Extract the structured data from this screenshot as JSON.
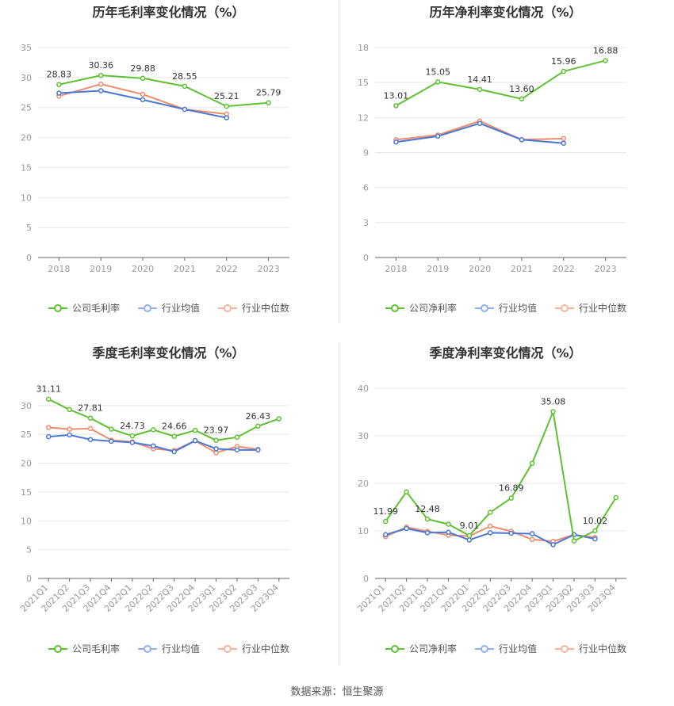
{
  "legend_labels": {
    "gross": "公司毛利率",
    "net": "公司净利率",
    "avg": "行业均值",
    "median": "行业中位数"
  },
  "colors": {
    "company": "#5ec230",
    "avg": "#4a78d6",
    "median": "#f08c6c",
    "grid": "#e8e8e8",
    "axis": "#999999"
  },
  "source": "数据来源：恒生聚源",
  "chart_data": [
    {
      "type": "line",
      "title": "历年毛利率变化情况（%）",
      "categories": [
        "2018",
        "2019",
        "2020",
        "2021",
        "2022",
        "2023"
      ],
      "yticks": [
        0,
        5,
        10,
        15,
        20,
        25,
        30,
        35
      ],
      "ylim": [
        0,
        35
      ],
      "rotate_x": false,
      "series": [
        {
          "name": "公司毛利率",
          "key": "company",
          "values": [
            28.83,
            30.36,
            29.88,
            28.55,
            25.21,
            25.79
          ],
          "labels": [
            "28.83",
            "30.36",
            "29.88",
            "28.55",
            "25.21",
            "25.79"
          ]
        },
        {
          "name": "行业均值",
          "key": "avg",
          "values": [
            27.4,
            27.8,
            26.3,
            24.7,
            23.3,
            null
          ]
        },
        {
          "name": "行业中位数",
          "key": "median",
          "values": [
            26.9,
            28.9,
            27.2,
            24.7,
            23.9,
            null
          ]
        }
      ]
    },
    {
      "type": "line",
      "title": "历年净利率变化情况（%）",
      "categories": [
        "2018",
        "2019",
        "2020",
        "2021",
        "2022",
        "2023"
      ],
      "yticks": [
        0,
        3,
        6,
        9,
        12,
        15,
        18
      ],
      "ylim": [
        0,
        18
      ],
      "rotate_x": false,
      "series": [
        {
          "name": "公司净利率",
          "key": "company",
          "values": [
            13.01,
            15.05,
            14.41,
            13.6,
            15.96,
            16.88
          ],
          "labels": [
            "13.01",
            "15.05",
            "14.41",
            "13.60",
            "15.96",
            "16.88"
          ]
        },
        {
          "name": "行业均值",
          "key": "avg",
          "values": [
            9.9,
            10.4,
            11.5,
            10.1,
            9.8,
            null
          ]
        },
        {
          "name": "行业中位数",
          "key": "median",
          "values": [
            10.1,
            10.5,
            11.7,
            10.1,
            10.2,
            null
          ]
        }
      ]
    },
    {
      "type": "line",
      "title": "季度毛利率变化情况（%）",
      "categories": [
        "2021Q1",
        "2021Q2",
        "2021Q3",
        "2021Q4",
        "2022Q1",
        "2022Q2",
        "2022Q3",
        "2022Q4",
        "2023Q1",
        "2023Q2",
        "2023Q3",
        "2023Q4"
      ],
      "yticks": [
        0,
        5,
        10,
        15,
        20,
        25,
        30
      ],
      "ylim": [
        0,
        33
      ],
      "rotate_x": true,
      "series": [
        {
          "name": "公司毛利率",
          "key": "company",
          "values": [
            31.11,
            29.3,
            27.81,
            25.9,
            24.73,
            25.8,
            24.66,
            25.7,
            23.97,
            24.5,
            26.43,
            27.7
          ],
          "labels": [
            "31.11",
            "",
            "27.81",
            "",
            "24.73",
            "",
            "24.66",
            "",
            "23.97",
            "",
            "26.43",
            ""
          ]
        },
        {
          "name": "行业均值",
          "key": "avg",
          "values": [
            24.6,
            24.9,
            24.1,
            23.8,
            23.6,
            23.0,
            22.0,
            23.9,
            22.5,
            22.3,
            22.3,
            null
          ]
        },
        {
          "name": "行业中位数",
          "key": "median",
          "values": [
            26.2,
            25.9,
            26.0,
            24.0,
            23.7,
            22.5,
            22.2,
            23.9,
            21.8,
            22.9,
            22.4,
            null
          ]
        }
      ]
    },
    {
      "type": "line",
      "title": "季度净利率变化情况（%）",
      "categories": [
        "2021Q1",
        "2021Q2",
        "2021Q3",
        "2021Q4",
        "2022Q1",
        "2022Q2",
        "2022Q3",
        "2022Q4",
        "2023Q1",
        "2023Q2",
        "2023Q3",
        "2023Q4"
      ],
      "yticks": [
        0,
        10,
        20,
        30,
        40
      ],
      "ylim": [
        0,
        40
      ],
      "rotate_x": true,
      "series": [
        {
          "name": "公司净利率",
          "key": "company",
          "values": [
            11.99,
            18.2,
            12.48,
            11.4,
            9.01,
            13.9,
            16.89,
            24.2,
            35.08,
            7.9,
            10.02,
            17.0
          ],
          "labels": [
            "11.99",
            "",
            "12.48",
            "",
            "9.01",
            "",
            "16.89",
            "",
            "35.08",
            "",
            "10.02",
            ""
          ]
        },
        {
          "name": "行业均值",
          "key": "avg",
          "values": [
            9.2,
            10.5,
            9.6,
            9.7,
            8.1,
            9.6,
            9.5,
            9.4,
            7.1,
            9.2,
            8.3,
            null
          ]
        },
        {
          "name": "行业中位数",
          "key": "median",
          "values": [
            8.8,
            10.8,
            9.9,
            9.1,
            8.9,
            11.0,
            9.9,
            8.2,
            7.8,
            9.2,
            8.6,
            null
          ]
        }
      ]
    }
  ]
}
